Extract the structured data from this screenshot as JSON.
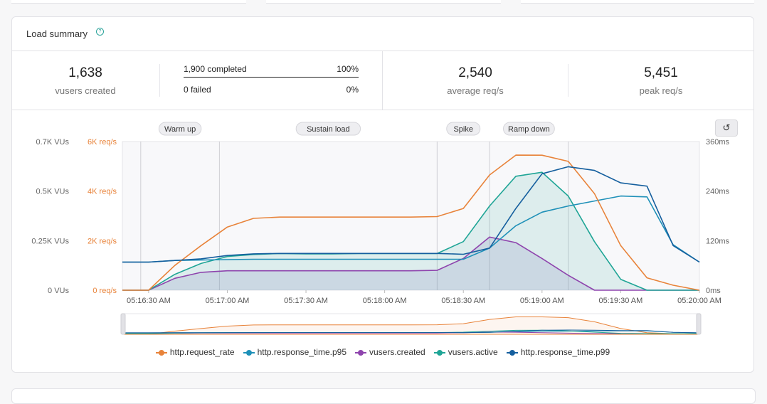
{
  "card": {
    "title": "Load summary",
    "help_icon": "question-circle-icon"
  },
  "stats": {
    "vusers_created": {
      "value": "1,638",
      "label": "vusers created"
    },
    "iterations": {
      "completed_label": "1,900 completed",
      "completed_pct": "100%",
      "failed_label": "0 failed",
      "failed_pct": "0%"
    },
    "average_rps": {
      "value": "2,540",
      "label": "average req/s"
    },
    "peak_rps": {
      "value": "5,451",
      "label": "peak req/s"
    }
  },
  "reset_icon": "reset-zoom-icon",
  "colors": {
    "request_rate": "#e8833a",
    "p95": "#1e90b8",
    "vusers_created": "#8e44ad",
    "vusers_active": "#1fa596",
    "p99": "#155f9e"
  },
  "chart_data": {
    "type": "line",
    "phases": [
      {
        "name": "Warm up",
        "start": "05:16:27",
        "end": "05:16:57"
      },
      {
        "name": "Sustain load",
        "start": "05:16:57",
        "end": "05:18:20"
      },
      {
        "name": "Spike",
        "start": "05:18:20",
        "end": "05:18:40"
      },
      {
        "name": "Ramp down",
        "start": "05:18:40",
        "end": "05:19:10"
      }
    ],
    "x_tick_labels": [
      "05:16:30 AM",
      "05:17:00 AM",
      "05:17:30 AM",
      "05:18:00 AM",
      "05:18:30 AM",
      "05:19:00 AM",
      "05:19:30 AM",
      "05:20:00 AM"
    ],
    "y_left_vus": {
      "ticks": [
        "0 VUs",
        "0.25K VUs",
        "0.5K VUs",
        "0.7K VUs"
      ],
      "range": [
        0,
        750
      ]
    },
    "y_left_rps": {
      "ticks": [
        "0 req/s",
        "2K req/s",
        "4K req/s",
        "6K req/s"
      ],
      "range": [
        0,
        6000
      ]
    },
    "y_right_ms": {
      "ticks": [
        "0ms",
        "120ms",
        "240ms",
        "360ms"
      ],
      "range": [
        0,
        360
      ]
    },
    "x": [
      "05:16:20",
      "05:16:30",
      "05:16:40",
      "05:16:50",
      "05:17:00",
      "05:17:10",
      "05:17:20",
      "05:17:30",
      "05:17:40",
      "05:17:50",
      "05:18:00",
      "05:18:10",
      "05:18:20",
      "05:18:30",
      "05:18:40",
      "05:18:50",
      "05:19:00",
      "05:19:10",
      "05:19:20",
      "05:19:30",
      "05:19:40",
      "05:19:50",
      "05:20:00"
    ],
    "series": [
      {
        "name": "http.request_rate",
        "axis": "rps",
        "color_key": "request_rate",
        "values": [
          0,
          0,
          1000,
          1800,
          2550,
          2900,
          2950,
          2950,
          2950,
          2950,
          2950,
          2950,
          2970,
          3300,
          4650,
          5451,
          5450,
          5200,
          3900,
          1800,
          500,
          200,
          0
        ]
      },
      {
        "name": "http.response_time.p95",
        "axis": "ms",
        "color_key": "p95",
        "values": [
          68,
          68,
          72,
          73,
          74,
          75,
          75,
          75,
          75,
          75,
          75,
          75,
          75,
          75,
          102,
          156,
          189,
          204,
          216,
          228,
          226,
          110,
          68
        ]
      },
      {
        "name": "vusers.created",
        "axis": "vus",
        "color_key": "vusers_created",
        "values": [
          0,
          0,
          60,
          90,
          98,
          98,
          98,
          98,
          98,
          98,
          98,
          98,
          100,
          160,
          268,
          240,
          160,
          75,
          0,
          0,
          0,
          0,
          0
        ]
      },
      {
        "name": "vusers.active",
        "axis": "vus",
        "color_key": "vusers_active",
        "values": [
          0,
          0,
          80,
          135,
          170,
          180,
          185,
          183,
          183,
          185,
          185,
          185,
          185,
          245,
          425,
          575,
          595,
          475,
          245,
          55,
          0,
          0,
          0
        ]
      },
      {
        "name": "http.response_time.p99",
        "axis": "ms",
        "color_key": "p99",
        "values": [
          68,
          68,
          72,
          76,
          84,
          88,
          89,
          89,
          89,
          89,
          89,
          89,
          89,
          87,
          102,
          198,
          282,
          299,
          290,
          260,
          252,
          108,
          68
        ]
      }
    ],
    "legend": [
      "http.request_rate",
      "http.response_time.p95",
      "vusers.created",
      "vusers.active",
      "http.response_time.p99"
    ],
    "legend_placement": "bottom",
    "grid": false
  }
}
